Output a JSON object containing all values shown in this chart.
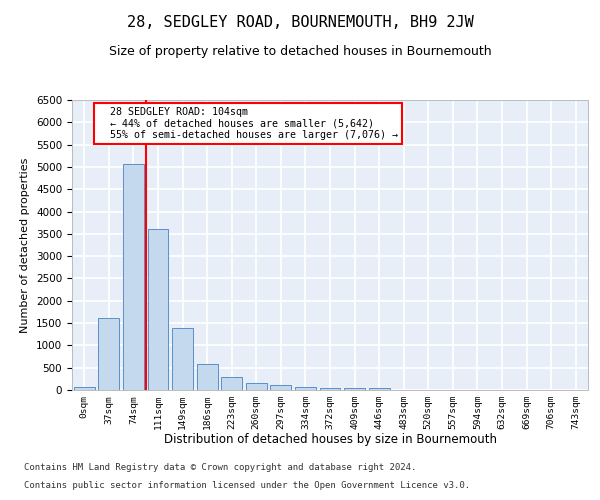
{
  "title": "28, SEDGLEY ROAD, BOURNEMOUTH, BH9 2JW",
  "subtitle": "Size of property relative to detached houses in Bournemouth",
  "xlabel": "Distribution of detached houses by size in Bournemouth",
  "ylabel": "Number of detached properties",
  "footer_line1": "Contains HM Land Registry data © Crown copyright and database right 2024.",
  "footer_line2": "Contains public sector information licensed under the Open Government Licence v3.0.",
  "bar_labels": [
    "0sqm",
    "37sqm",
    "74sqm",
    "111sqm",
    "149sqm",
    "186sqm",
    "223sqm",
    "260sqm",
    "297sqm",
    "334sqm",
    "372sqm",
    "409sqm",
    "446sqm",
    "483sqm",
    "520sqm",
    "557sqm",
    "594sqm",
    "632sqm",
    "669sqm",
    "706sqm",
    "743sqm"
  ],
  "bar_values": [
    75,
    1625,
    5075,
    3600,
    1400,
    580,
    290,
    150,
    110,
    75,
    55,
    50,
    50,
    0,
    0,
    0,
    0,
    0,
    0,
    0,
    0
  ],
  "bar_color": "#c5d9ee",
  "bar_edge_color": "#5b8fc9",
  "ylim": [
    0,
    6500
  ],
  "yticks": [
    0,
    500,
    1000,
    1500,
    2000,
    2500,
    3000,
    3500,
    4000,
    4500,
    5000,
    5500,
    6000,
    6500
  ],
  "annotation_text_line1": "28 SEDGLEY ROAD: 104sqm",
  "annotation_text_line2": "← 44% of detached houses are smaller (5,642)",
  "annotation_text_line3": "55% of semi-detached houses are larger (7,076) →",
  "bg_color": "#e8eef7",
  "grid_color": "#ffffff",
  "title_fontsize": 11,
  "subtitle_fontsize": 9,
  "vline_index": 3
}
